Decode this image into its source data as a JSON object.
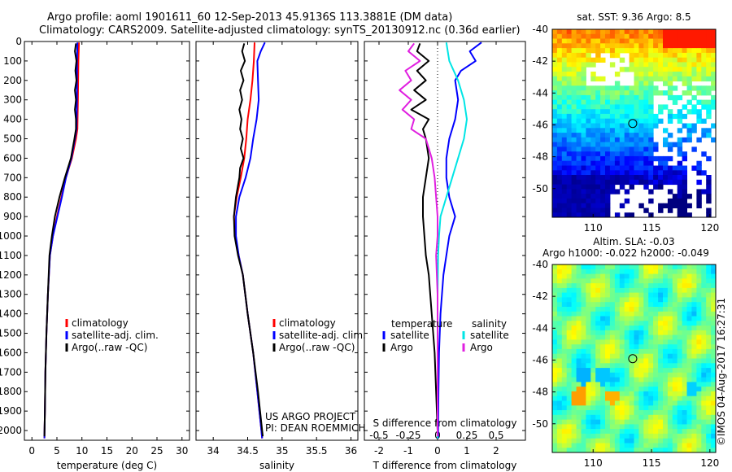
{
  "title_line1": "Argo profile: aoml 1901611_60 12-Sep-2013 45.9136S 113.3881E (DM data)",
  "title_line2": "Climatology: CARS2009. Satellite-adjusted climatology: synTS_20130912.nc (0.36d earlier)",
  "colors": {
    "climatology": "#ff0000",
    "satellite": "#0000ff",
    "argo": "#000000",
    "sat_salinity": "#00e5e5",
    "argo_salinity": "#e020e0"
  },
  "depth_axis": {
    "min": 0,
    "max": 2050,
    "ticks": [
      0,
      100,
      200,
      300,
      400,
      500,
      600,
      700,
      800,
      900,
      1000,
      1100,
      1200,
      1300,
      1400,
      1500,
      1600,
      1700,
      1800,
      1900,
      2000
    ]
  },
  "chart_data": [
    {
      "type": "line",
      "id": "temperature",
      "xlabel": "temperature (deg C)",
      "xlim": [
        -1.5,
        31.5
      ],
      "xticks": [
        0,
        5,
        10,
        15,
        20,
        25,
        30
      ],
      "legend": [
        "climatology",
        "satellite-adj. clim.",
        "Argo(..raw -QC)"
      ],
      "series": [
        {
          "name": "climatology",
          "color": "#ff0000",
          "points": [
            [
              9.4,
              5
            ],
            [
              9.3,
              100
            ],
            [
              9.2,
              300
            ],
            [
              9.1,
              450
            ],
            [
              8.8,
              500
            ],
            [
              8.0,
              600
            ],
            [
              6.8,
              700
            ],
            [
              5.9,
              800
            ],
            [
              5.0,
              900
            ],
            [
              4.2,
              1000
            ],
            [
              3.6,
              1100
            ],
            [
              3.2,
              1300
            ],
            [
              2.9,
              1500
            ],
            [
              2.7,
              1700
            ],
            [
              2.6,
              1900
            ],
            [
              2.5,
              2040
            ]
          ]
        },
        {
          "name": "satellite-adj. clim.",
          "color": "#0000ff",
          "points": [
            [
              9.1,
              5
            ],
            [
              9.0,
              100
            ],
            [
              9.0,
              300
            ],
            [
              8.9,
              450
            ],
            [
              8.6,
              500
            ],
            [
              7.9,
              600
            ],
            [
              6.8,
              700
            ],
            [
              6.0,
              800
            ],
            [
              5.1,
              900
            ],
            [
              4.2,
              1000
            ],
            [
              3.6,
              1100
            ],
            [
              3.2,
              1300
            ],
            [
              2.9,
              1500
            ],
            [
              2.7,
              1700
            ],
            [
              2.6,
              1900
            ],
            [
              2.5,
              2040
            ]
          ]
        },
        {
          "name": "Argo(..raw -QC)",
          "color": "#000000",
          "points": [
            [
              8.8,
              10
            ],
            [
              8.6,
              50
            ],
            [
              8.9,
              100
            ],
            [
              8.7,
              150
            ],
            [
              8.9,
              200
            ],
            [
              8.6,
              250
            ],
            [
              8.8,
              300
            ],
            [
              8.6,
              350
            ],
            [
              8.8,
              400
            ],
            [
              8.8,
              450
            ],
            [
              8.5,
              500
            ],
            [
              7.8,
              600
            ],
            [
              6.6,
              700
            ],
            [
              5.5,
              800
            ],
            [
              4.6,
              900
            ],
            [
              4.0,
              1000
            ],
            [
              3.5,
              1100
            ],
            [
              3.2,
              1300
            ],
            [
              2.9,
              1500
            ],
            [
              2.7,
              1700
            ],
            [
              2.6,
              1900
            ],
            [
              2.5,
              2030
            ]
          ]
        }
      ]
    },
    {
      "type": "line",
      "id": "salinity",
      "xlabel": "salinity",
      "xlim": [
        33.75,
        36.1
      ],
      "xticks": [
        34,
        34.5,
        35,
        35.5,
        36
      ],
      "legend": [
        "climatology",
        "satellite-adj. clim.",
        "Argo(..raw -QC)"
      ],
      "annotation": [
        "US ARGO PROJECT",
        "PI: DEAN ROEMMICH"
      ],
      "series": [
        {
          "name": "climatology",
          "color": "#ff0000",
          "points": [
            [
              34.6,
              5
            ],
            [
              34.59,
              100
            ],
            [
              34.57,
              200
            ],
            [
              34.54,
              300
            ],
            [
              34.5,
              400
            ],
            [
              34.48,
              500
            ],
            [
              34.45,
              600
            ],
            [
              34.4,
              700
            ],
            [
              34.34,
              800
            ],
            [
              34.3,
              900
            ],
            [
              34.32,
              1000
            ],
            [
              34.37,
              1100
            ],
            [
              34.43,
              1200
            ],
            [
              34.5,
              1400
            ],
            [
              34.58,
              1600
            ],
            [
              34.64,
              1800
            ],
            [
              34.7,
              2000
            ],
            [
              34.71,
              2040
            ]
          ]
        },
        {
          "name": "satellite-adj. clim.",
          "color": "#0000ff",
          "points": [
            [
              34.75,
              5
            ],
            [
              34.69,
              50
            ],
            [
              34.64,
              100
            ],
            [
              34.65,
              200
            ],
            [
              34.66,
              300
            ],
            [
              34.63,
              400
            ],
            [
              34.58,
              500
            ],
            [
              34.54,
              600
            ],
            [
              34.47,
              700
            ],
            [
              34.38,
              800
            ],
            [
              34.33,
              900
            ],
            [
              34.33,
              1000
            ],
            [
              34.37,
              1100
            ],
            [
              34.43,
              1200
            ],
            [
              34.5,
              1400
            ],
            [
              34.58,
              1600
            ],
            [
              34.64,
              1800
            ],
            [
              34.7,
              2000
            ],
            [
              34.71,
              2040
            ]
          ]
        },
        {
          "name": "Argo(..raw -QC)",
          "color": "#000000",
          "points": [
            [
              34.45,
              10
            ],
            [
              34.42,
              50
            ],
            [
              34.46,
              100
            ],
            [
              34.4,
              150
            ],
            [
              34.44,
              200
            ],
            [
              34.39,
              250
            ],
            [
              34.42,
              300
            ],
            [
              34.38,
              350
            ],
            [
              34.41,
              400
            ],
            [
              34.39,
              450
            ],
            [
              34.43,
              500
            ],
            [
              34.4,
              550
            ],
            [
              34.44,
              600
            ],
            [
              34.39,
              650
            ],
            [
              34.38,
              700
            ],
            [
              34.33,
              800
            ],
            [
              34.3,
              900
            ],
            [
              34.31,
              1000
            ],
            [
              34.36,
              1100
            ],
            [
              34.43,
              1200
            ],
            [
              34.5,
              1400
            ],
            [
              34.58,
              1600
            ],
            [
              34.65,
              1800
            ],
            [
              34.71,
              2000
            ],
            [
              34.72,
              2030
            ]
          ]
        }
      ]
    },
    {
      "type": "line",
      "id": "difference",
      "xlabel": "T difference from climatology",
      "xlabel_top": "S difference from climatology",
      "xlim": [
        -2.5,
        3.0
      ],
      "xticks": [
        -2,
        -1,
        0,
        1,
        2
      ],
      "secondary_ticks": {
        "labels": [
          "-0.5",
          "-0.25",
          "0",
          "0.25",
          "0.5"
        ],
        "values": [
          -0.5,
          -0.25,
          0,
          0.25,
          0.5
        ],
        "scale": 4
      },
      "legend_headers": [
        "temperature",
        "salinity"
      ],
      "legend": [
        "satellite",
        "Argo",
        "satellite",
        "Argo"
      ],
      "series": [
        {
          "name": "satellite",
          "group": "temperature",
          "color": "#0000ff",
          "points": [
            [
              1.5,
              5
            ],
            [
              1.1,
              50
            ],
            [
              1.3,
              100
            ],
            [
              0.8,
              150
            ],
            [
              0.6,
              200
            ],
            [
              0.7,
              300
            ],
            [
              0.6,
              400
            ],
            [
              0.4,
              500
            ],
            [
              0.3,
              600
            ],
            [
              0.3,
              700
            ],
            [
              0.4,
              800
            ],
            [
              0.6,
              900
            ],
            [
              0.4,
              1000
            ],
            [
              0.3,
              1100
            ],
            [
              0.2,
              1200
            ],
            [
              0.1,
              1400
            ],
            [
              0.05,
              1600
            ],
            [
              0.03,
              1800
            ],
            [
              0.02,
              2000
            ],
            [
              0.02,
              2040
            ]
          ]
        },
        {
          "name": "Argo",
          "group": "temperature",
          "color": "#000000",
          "points": [
            [
              -0.6,
              10
            ],
            [
              -0.7,
              50
            ],
            [
              -0.3,
              100
            ],
            [
              -0.7,
              150
            ],
            [
              -0.4,
              200
            ],
            [
              -0.8,
              250
            ],
            [
              -0.4,
              300
            ],
            [
              -0.9,
              350
            ],
            [
              -0.3,
              400
            ],
            [
              -0.5,
              450
            ],
            [
              -0.4,
              500
            ],
            [
              -0.3,
              600
            ],
            [
              -0.4,
              700
            ],
            [
              -0.5,
              800
            ],
            [
              -0.5,
              900
            ],
            [
              -0.45,
              1000
            ],
            [
              -0.4,
              1100
            ],
            [
              -0.3,
              1200
            ],
            [
              -0.2,
              1400
            ],
            [
              -0.1,
              1600
            ],
            [
              -0.05,
              1800
            ],
            [
              0.0,
              2000
            ],
            [
              0.0,
              2030
            ]
          ]
        },
        {
          "name": "satellite",
          "group": "salinity",
          "color": "#00e5e5",
          "points": [
            [
              0.3,
              5
            ],
            [
              0.4,
              100
            ],
            [
              0.7,
              200
            ],
            [
              0.9,
              300
            ],
            [
              1.0,
              400
            ],
            [
              0.9,
              500
            ],
            [
              0.7,
              600
            ],
            [
              0.5,
              700
            ],
            [
              0.3,
              800
            ],
            [
              0.1,
              900
            ],
            [
              0.05,
              1000
            ],
            [
              0.02,
              1100
            ],
            [
              0.0,
              1300
            ],
            [
              0.0,
              1600
            ],
            [
              0.0,
              2040
            ]
          ]
        },
        {
          "name": "Argo",
          "group": "salinity",
          "color": "#e020e0",
          "points": [
            [
              -0.8,
              10
            ],
            [
              -1.0,
              50
            ],
            [
              -0.6,
              100
            ],
            [
              -1.1,
              150
            ],
            [
              -0.9,
              200
            ],
            [
              -1.3,
              250
            ],
            [
              -0.9,
              300
            ],
            [
              -1.2,
              350
            ],
            [
              -0.8,
              400
            ],
            [
              -0.9,
              450
            ],
            [
              -0.4,
              500
            ],
            [
              -0.2,
              600
            ],
            [
              -0.1,
              700
            ],
            [
              -0.05,
              800
            ],
            [
              0.0,
              900
            ],
            [
              0.0,
              1000
            ],
            [
              -0.05,
              1100
            ],
            [
              0.0,
              1300
            ],
            [
              0.0,
              1500
            ],
            [
              0.0,
              2030
            ]
          ]
        }
      ]
    },
    {
      "type": "heatmap",
      "id": "sst-map",
      "title": "sat. SST: 9.36 Argo: 8.5",
      "xticks": [
        110,
        115,
        120
      ],
      "yticks": [
        -40,
        -42,
        -44,
        -46,
        -48,
        -50
      ],
      "xlim": [
        106.5,
        120.5
      ],
      "ylim": [
        -51.8,
        -40
      ],
      "marker": [
        113.39,
        -45.91
      ]
    },
    {
      "type": "heatmap",
      "id": "sla-map",
      "title": "Altim. SLA: -0.03",
      "subtitle": "Argo h1000: -0.022 h2000: -0.049",
      "xticks": [
        110,
        115,
        120
      ],
      "yticks": [
        -40,
        -42,
        -44,
        -46,
        -48,
        -50
      ],
      "xlim": [
        106.5,
        120.5
      ],
      "ylim": [
        -51.8,
        -40
      ],
      "marker": [
        113.39,
        -45.91
      ]
    }
  ],
  "credit": "©IMOS 04-Aug-2017 16:27:31"
}
